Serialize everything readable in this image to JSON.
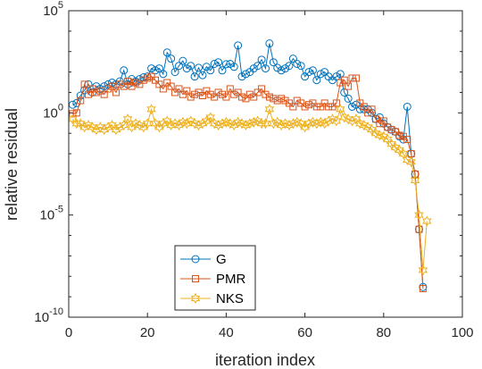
{
  "chart_data": {
    "type": "line",
    "xlabel": "iteration index",
    "ylabel": "relative residual",
    "xlim": [
      0,
      100
    ],
    "ylim": [
      1e-10,
      100000.0
    ],
    "yscale": "log",
    "xticks": [
      0,
      20,
      40,
      60,
      80,
      100
    ],
    "xtick_labels": [
      "0",
      "20",
      "40",
      "60",
      "80",
      "100"
    ],
    "yticks": [
      1e-10,
      1e-05,
      1,
      100000.0
    ],
    "ytick_labels": [
      {
        "base": "10",
        "exp": "-10"
      },
      {
        "base": "10",
        "exp": "-5"
      },
      {
        "base": "10",
        "exp": "0"
      },
      {
        "base": "10",
        "exp": "5"
      }
    ],
    "grid": false,
    "legend_position": "lower-center-left",
    "series": [
      {
        "name": "G",
        "color": "#0072BD",
        "marker": "circle",
        "x": [
          1,
          2,
          3,
          4,
          5,
          6,
          7,
          8,
          9,
          10,
          11,
          12,
          13,
          14,
          15,
          16,
          17,
          18,
          19,
          20,
          21,
          22,
          23,
          24,
          25,
          26,
          27,
          28,
          29,
          30,
          31,
          32,
          33,
          34,
          35,
          36,
          37,
          38,
          39,
          40,
          41,
          42,
          43,
          44,
          45,
          46,
          47,
          48,
          49,
          50,
          51,
          52,
          53,
          54,
          55,
          56,
          57,
          58,
          59,
          60,
          61,
          62,
          63,
          64,
          65,
          66,
          67,
          68,
          69,
          70,
          71,
          72,
          73,
          74,
          75,
          76,
          77,
          78,
          79,
          80,
          81,
          82,
          83,
          84,
          85,
          86,
          87,
          88,
          89,
          90
        ],
        "y": [
          2.5,
          3,
          7,
          13,
          25,
          10,
          20,
          15,
          20,
          25,
          30,
          25,
          35,
          120,
          25,
          45,
          35,
          45,
          55,
          60,
          150,
          120,
          150,
          80,
          900,
          450,
          100,
          200,
          350,
          150,
          200,
          60,
          160,
          70,
          180,
          120,
          250,
          300,
          120,
          240,
          250,
          180,
          2000,
          60,
          80,
          100,
          150,
          200,
          400,
          150,
          2500,
          300,
          160,
          120,
          150,
          200,
          450,
          250,
          200,
          60,
          100,
          120,
          40,
          80,
          100,
          60,
          40,
          60,
          80,
          10,
          5,
          2,
          2.5,
          1.5,
          1.5,
          1.5,
          1,
          0.5,
          0.6,
          0.3,
          0.2,
          0.15,
          0.12,
          0.07,
          0.05,
          2,
          0.01,
          0.001,
          2e-06,
          3e-09
        ]
      },
      {
        "name": "PMR",
        "color": "#D95319",
        "marker": "square",
        "x": [
          1,
          2,
          3,
          4,
          5,
          6,
          7,
          8,
          9,
          10,
          11,
          12,
          13,
          14,
          15,
          16,
          17,
          18,
          19,
          20,
          21,
          22,
          23,
          24,
          25,
          26,
          27,
          28,
          29,
          30,
          31,
          32,
          33,
          34,
          35,
          36,
          37,
          38,
          39,
          40,
          41,
          42,
          43,
          44,
          45,
          46,
          47,
          48,
          49,
          50,
          51,
          52,
          53,
          54,
          55,
          56,
          57,
          58,
          59,
          60,
          61,
          62,
          63,
          64,
          65,
          66,
          67,
          68,
          69,
          70,
          71,
          72,
          73,
          74,
          75,
          76,
          77,
          78,
          79,
          80,
          81,
          82,
          83,
          84,
          85,
          86,
          87,
          88,
          89,
          90
        ],
        "y": [
          0.9,
          1,
          4,
          25,
          8,
          15,
          10,
          12,
          8,
          15,
          20,
          10,
          25,
          20,
          35,
          20,
          30,
          25,
          40,
          50,
          60,
          40,
          25,
          15,
          30,
          20,
          10,
          15,
          8,
          12,
          6,
          8,
          10,
          7,
          12,
          8,
          6,
          10,
          8,
          6,
          15,
          8,
          10,
          6,
          5,
          8,
          6,
          10,
          15,
          8,
          6,
          5,
          4,
          5,
          4,
          3,
          2,
          4,
          3,
          2,
          2.5,
          3,
          2,
          2,
          3,
          2,
          2,
          3,
          30,
          40,
          20,
          50,
          50,
          3,
          2,
          1,
          1.5,
          0.5,
          0.3,
          0.4,
          0.2,
          0.15,
          0.12,
          0.08,
          0.07,
          0.05,
          0.01,
          0.001,
          2e-06,
          2.5e-09
        ]
      },
      {
        "name": "NKS",
        "color": "#EDB120",
        "marker": "hexagram",
        "x": [
          1,
          2,
          3,
          4,
          5,
          6,
          7,
          8,
          9,
          10,
          11,
          12,
          13,
          14,
          15,
          16,
          17,
          18,
          19,
          20,
          21,
          22,
          23,
          24,
          25,
          26,
          27,
          28,
          29,
          30,
          31,
          32,
          33,
          34,
          35,
          36,
          37,
          38,
          39,
          40,
          41,
          42,
          43,
          44,
          45,
          46,
          47,
          48,
          49,
          50,
          51,
          52,
          53,
          54,
          55,
          56,
          57,
          58,
          59,
          60,
          61,
          62,
          63,
          64,
          65,
          66,
          67,
          68,
          69,
          70,
          71,
          72,
          73,
          74,
          75,
          76,
          77,
          78,
          79,
          80,
          81,
          82,
          83,
          84,
          85,
          86,
          87,
          88,
          89,
          90,
          91
        ],
        "y": [
          0.5,
          0.3,
          0.3,
          0.2,
          0.25,
          0.2,
          0.15,
          0.2,
          0.15,
          0.2,
          0.25,
          0.15,
          0.2,
          0.25,
          0.5,
          0.2,
          0.3,
          0.25,
          0.2,
          0.3,
          1.5,
          0.3,
          0.2,
          0.3,
          0.4,
          0.25,
          0.3,
          0.25,
          0.35,
          0.3,
          0.4,
          0.3,
          0.25,
          0.3,
          0.4,
          0.6,
          0.3,
          0.25,
          0.3,
          0.35,
          0.3,
          0.25,
          0.35,
          0.3,
          0.25,
          0.3,
          0.35,
          0.4,
          0.3,
          0.3,
          1.5,
          0.3,
          0.35,
          0.25,
          0.3,
          0.25,
          0.3,
          0.35,
          0.3,
          0.2,
          0.3,
          0.35,
          0.3,
          0.35,
          0.3,
          0.4,
          0.5,
          0.4,
          1.5,
          0.6,
          0.5,
          0.4,
          0.5,
          0.3,
          0.25,
          0.2,
          0.15,
          0.1,
          0.08,
          0.07,
          0.05,
          0.03,
          0.02,
          0.015,
          0.01,
          0.005,
          0.004,
          0.0005,
          1e-05,
          2e-08,
          5e-06
        ]
      }
    ]
  }
}
